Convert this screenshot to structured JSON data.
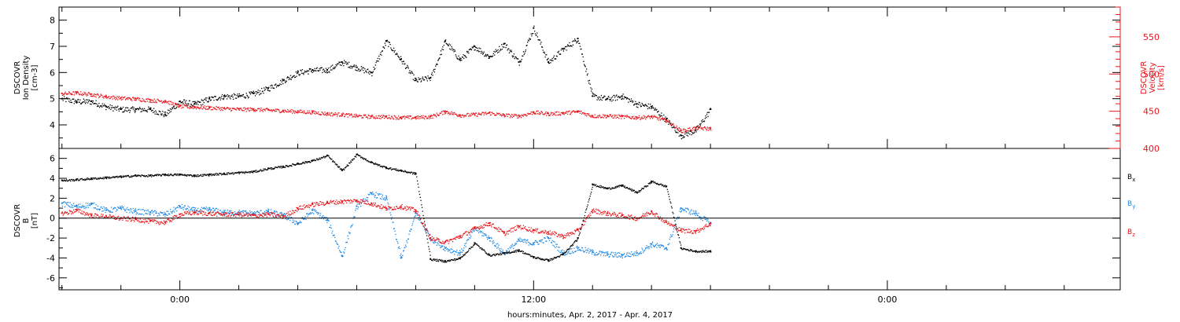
{
  "chart_data": [
    {
      "type": "scatter",
      "panel": "top",
      "ylabel_left": [
        "DSCOVR",
        "Ion Density",
        "[cm-3]"
      ],
      "ylabel_right": [
        "DSCOVR",
        "Velocity",
        "[km/s]"
      ],
      "x_range_hours": [
        -4.1,
        31.9
      ],
      "ylim_left": [
        3.1,
        8.5
      ],
      "yticks_left": [
        4,
        5,
        6,
        7,
        8
      ],
      "ylim_right": [
        400,
        590
      ],
      "yticks_right": [
        400,
        450,
        500,
        550
      ],
      "color_right": "#e8141a",
      "series": [
        {
          "color": "#000000",
          "x": [
            -4.0,
            -3.5,
            -3.0,
            -2.5,
            -2.0,
            -1.5,
            -1.0,
            -0.5,
            0.0,
            0.5,
            1.0,
            1.5,
            2.0,
            2.5,
            3.0,
            3.5,
            4.0,
            4.5,
            5.0,
            5.5,
            6.0,
            6.5,
            7.0,
            7.5,
            8.0,
            8.5,
            9.0,
            9.5,
            10.0,
            10.5,
            11.0,
            11.5,
            12.0,
            12.5,
            13.0,
            13.5,
            14.0,
            14.5,
            15.0,
            15.5,
            16.0,
            16.5,
            17.0,
            17.5,
            18.0
          ],
          "y": [
            5.0,
            4.9,
            4.9,
            4.7,
            4.6,
            4.6,
            4.6,
            4.4,
            4.9,
            4.8,
            5.0,
            5.1,
            5.1,
            5.2,
            5.4,
            5.7,
            6.0,
            6.1,
            6.1,
            6.4,
            6.2,
            6.0,
            7.2,
            6.5,
            5.7,
            5.8,
            7.2,
            6.5,
            7.0,
            6.6,
            7.1,
            6.4,
            7.7,
            6.4,
            6.9,
            7.3,
            5.1,
            5.0,
            5.1,
            4.8,
            4.7,
            4.2,
            3.6,
            3.8,
            4.6
          ]
        },
        {
          "color": "#e8141a",
          "x": [
            -4.0,
            -3.5,
            -3.0,
            -2.5,
            -2.0,
            -1.5,
            -1.0,
            -0.5,
            0.0,
            0.5,
            1.0,
            1.5,
            2.0,
            2.5,
            3.0,
            3.5,
            4.0,
            4.5,
            5.0,
            5.5,
            6.0,
            6.5,
            7.0,
            7.5,
            8.0,
            8.5,
            9.0,
            9.5,
            10.0,
            10.5,
            11.0,
            11.5,
            12.0,
            12.5,
            13.0,
            13.5,
            14.0,
            14.5,
            15.0,
            15.5,
            16.0,
            16.5,
            17.0,
            17.5,
            18.0
          ],
          "y": [
            474,
            475,
            473,
            470,
            468,
            467,
            465,
            464,
            457,
            456,
            455,
            454,
            453,
            453,
            452,
            451,
            450,
            449,
            447,
            446,
            444,
            443,
            443,
            442,
            442,
            443,
            450,
            445,
            446,
            448,
            445,
            444,
            449,
            447,
            448,
            450,
            444,
            444,
            443,
            442,
            443,
            438,
            424,
            428,
            427
          ]
        }
      ]
    },
    {
      "type": "scatter",
      "panel": "bottom",
      "ylabel": [
        "DSCOVR",
        "B",
        "[nT]"
      ],
      "x_range_hours": [
        -4.1,
        31.9
      ],
      "ylim": [
        -7.2,
        7.0
      ],
      "yticks": [
        -6,
        -4,
        -2,
        0,
        2,
        4,
        6
      ],
      "zero_line": true,
      "legend_placement": "right",
      "series": [
        {
          "name": "Bx",
          "color": "#000000",
          "x": [
            -4.0,
            -3.5,
            -3.0,
            -2.5,
            -2.0,
            -1.5,
            -1.0,
            -0.5,
            0.0,
            0.5,
            1.0,
            1.5,
            2.0,
            2.5,
            3.0,
            3.5,
            4.0,
            4.5,
            5.0,
            5.5,
            6.0,
            6.5,
            7.0,
            7.5,
            8.0,
            8.5,
            9.0,
            9.5,
            10.0,
            10.5,
            11.0,
            11.5,
            12.0,
            12.5,
            13.0,
            13.5,
            14.0,
            14.5,
            15.0,
            15.5,
            16.0,
            16.5,
            17.0,
            17.5,
            18.0
          ],
          "y": [
            3.8,
            3.9,
            4.0,
            4.1,
            4.2,
            4.3,
            4.3,
            4.4,
            4.4,
            4.3,
            4.4,
            4.5,
            4.6,
            4.7,
            5.0,
            5.2,
            5.5,
            5.8,
            6.3,
            4.8,
            6.4,
            5.6,
            5.1,
            4.8,
            4.5,
            -4.1,
            -4.3,
            -4.0,
            -2.5,
            -3.7,
            -3.5,
            -3.2,
            -3.9,
            -4.2,
            -3.6,
            -2.0,
            3.4,
            3.0,
            3.3,
            2.6,
            3.7,
            3.2,
            -3.0,
            -3.3,
            -3.3
          ]
        },
        {
          "name": "By",
          "color": "#1e88e5",
          "x": [
            -4.0,
            -3.5,
            -3.0,
            -2.5,
            -2.0,
            -1.5,
            -1.0,
            -0.5,
            0.0,
            0.5,
            1.0,
            1.5,
            2.0,
            2.5,
            3.0,
            3.5,
            4.0,
            4.5,
            5.0,
            5.5,
            6.0,
            6.5,
            7.0,
            7.5,
            8.0,
            8.5,
            9.0,
            9.5,
            10.0,
            10.5,
            11.0,
            11.5,
            12.0,
            12.5,
            13.0,
            13.5,
            14.0,
            14.5,
            15.0,
            15.5,
            16.0,
            16.5,
            17.0,
            17.5,
            18.0
          ],
          "y": [
            1.5,
            1.2,
            1.4,
            0.8,
            1.0,
            0.7,
            0.6,
            0.4,
            1.2,
            0.8,
            0.9,
            0.6,
            0.6,
            0.5,
            0.7,
            0.3,
            -0.5,
            0.8,
            -0.2,
            -3.8,
            1.2,
            2.5,
            2.0,
            -4.0,
            0.5,
            -2.0,
            -3.0,
            -3.5,
            -1.0,
            -2.0,
            -3.5,
            -2.2,
            -2.5,
            -2.0,
            -3.5,
            -3.0,
            -3.4,
            -3.6,
            -3.7,
            -3.5,
            -2.6,
            -3.0,
            1.0,
            0.5,
            -0.5
          ]
        },
        {
          "name": "Bz",
          "color": "#e8141a",
          "x": [
            -4.0,
            -3.5,
            -3.0,
            -2.5,
            -2.0,
            -1.5,
            -1.0,
            -0.5,
            0.0,
            0.5,
            1.0,
            1.5,
            2.0,
            2.5,
            3.0,
            3.5,
            4.0,
            4.5,
            5.0,
            5.5,
            6.0,
            6.5,
            7.0,
            7.5,
            8.0,
            8.5,
            9.0,
            9.5,
            10.0,
            10.5,
            11.0,
            11.5,
            12.0,
            12.5,
            13.0,
            13.5,
            14.0,
            14.5,
            15.0,
            15.5,
            16.0,
            16.5,
            17.0,
            17.5,
            18.0
          ],
          "y": [
            0.5,
            0.8,
            0.3,
            0.2,
            0.0,
            -0.1,
            -0.3,
            -0.4,
            0.4,
            0.6,
            0.5,
            0.4,
            0.4,
            0.3,
            0.4,
            0.2,
            1.0,
            1.4,
            1.6,
            1.7,
            1.8,
            1.5,
            1.0,
            1.2,
            0.8,
            -2.0,
            -2.4,
            -1.8,
            -1.0,
            -0.5,
            -1.5,
            -0.8,
            -1.2,
            -1.4,
            -1.8,
            -1.2,
            0.8,
            0.5,
            0.3,
            0.0,
            0.7,
            -0.4,
            -1.2,
            -1.3,
            -0.5
          ]
        }
      ],
      "legend": [
        "B",
        "B",
        "B"
      ],
      "legend_subscripts": [
        "x",
        "y",
        "z"
      ]
    }
  ],
  "x_axis": {
    "tick_hours": [
      0,
      12,
      24
    ],
    "tick_labels": [
      "0:00",
      "12:00",
      "0:00"
    ],
    "minor_step_hours": 2,
    "label": "hours:minutes, Apr.  2, 2017 - Apr.  4, 2017"
  }
}
